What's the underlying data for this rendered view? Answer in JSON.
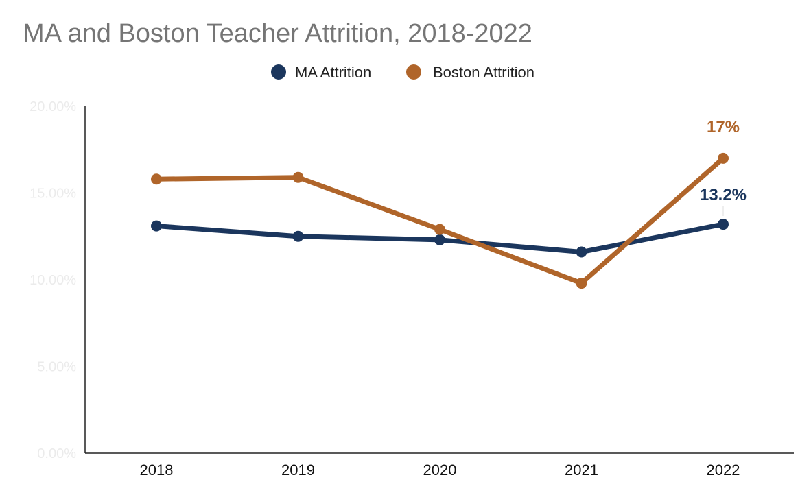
{
  "chart_data": {
    "type": "line",
    "title": "MA and Boston Teacher Attrition, 2018-2022",
    "xlabel": "",
    "ylabel": "",
    "categories": [
      "2018",
      "2019",
      "2020",
      "2021",
      "2022"
    ],
    "ylim": [
      0,
      20
    ],
    "y_ticks": [
      {
        "value": 0,
        "label": "0.00%"
      },
      {
        "value": 5,
        "label": "5.00%"
      },
      {
        "value": 10,
        "label": "10.00%"
      },
      {
        "value": 15,
        "label": "15.00%"
      },
      {
        "value": 20,
        "label": "20.00%"
      }
    ],
    "grid": false,
    "legend_position": "top-center",
    "series": [
      {
        "key": "ma",
        "name": "MA Attrition",
        "color": "#1b365d",
        "values": [
          13.1,
          12.5,
          12.3,
          11.6,
          13.2
        ],
        "data_labels": [
          null,
          null,
          null,
          null,
          "13.2%"
        ]
      },
      {
        "key": "boston",
        "name": "Boston Attrition",
        "color": "#b0652a",
        "values": [
          15.8,
          15.9,
          12.9,
          9.8,
          17.0
        ],
        "data_labels": [
          null,
          null,
          null,
          null,
          "17%"
        ]
      }
    ]
  }
}
